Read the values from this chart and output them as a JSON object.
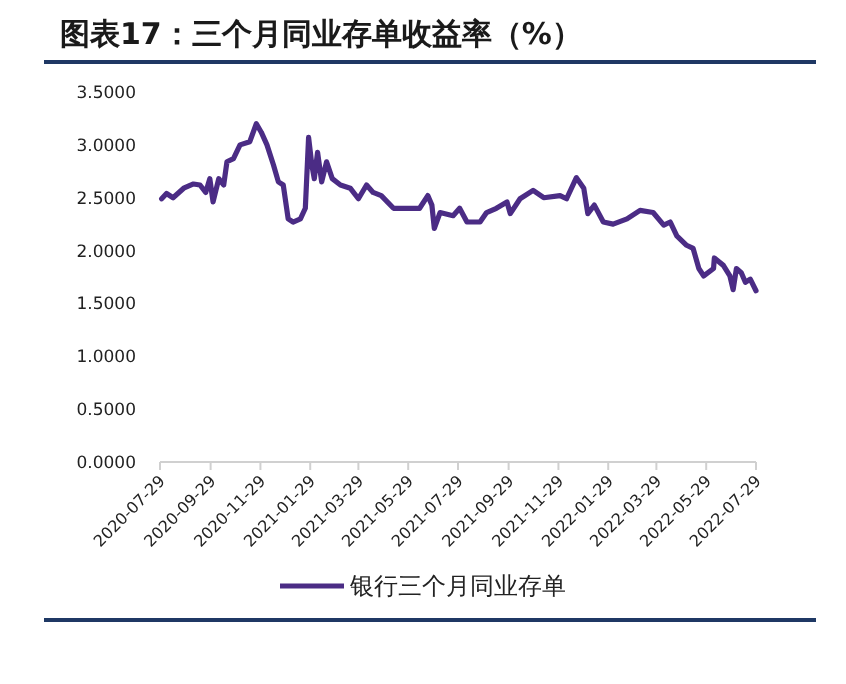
{
  "chart_data": {
    "type": "line",
    "title": "图表17：三个月同业存单收益率（%）",
    "xlim": [
      "2020-07-29",
      "2022-07-29"
    ],
    "xticks": [
      "2020-07-29",
      "2020-09-29",
      "2020-11-29",
      "2021-01-29",
      "2021-03-29",
      "2021-05-29",
      "2021-07-29",
      "2021-09-29",
      "2021-11-29",
      "2022-01-29",
      "2022-03-29",
      "2022-05-29",
      "2022-07-29"
    ],
    "ylim": [
      0,
      3.5
    ],
    "yticks": [
      {
        "value": 0,
        "label": "0.0000"
      },
      {
        "value": 0.5,
        "label": "0.5000"
      },
      {
        "value": 1,
        "label": "1.0000"
      },
      {
        "value": 1.5,
        "label": "1.5000"
      },
      {
        "value": 2,
        "label": "2.0000"
      },
      {
        "value": 2.5,
        "label": "2.5000"
      },
      {
        "value": 3,
        "label": "3.0000"
      },
      {
        "value": 3.5,
        "label": "3.5000"
      }
    ],
    "grid": false,
    "legend": "bottom",
    "marker": "none",
    "line_style": "solid",
    "series": [
      {
        "name": "银行三个月同业存单",
        "color": "#4b2c85",
        "x": [
          "2020-07-31",
          "2020-08-06",
          "2020-08-14",
          "2020-08-27",
          "2020-09-08",
          "2020-09-16",
          "2020-09-23",
          "2020-09-28",
          "2020-10-02",
          "2020-10-09",
          "2020-10-15",
          "2020-10-19",
          "2020-10-27",
          "2020-11-04",
          "2020-11-16",
          "2020-11-24",
          "2020-11-30",
          "2020-12-07",
          "2020-12-15",
          "2020-12-21",
          "2020-12-27",
          "2021-01-02",
          "2021-01-08",
          "2021-01-17",
          "2021-01-23",
          "2021-01-27",
          "2021-01-31",
          "2021-02-03",
          "2021-02-07",
          "2021-02-12",
          "2021-02-18",
          "2021-02-25",
          "2021-03-07",
          "2021-03-19",
          "2021-03-29",
          "2021-04-08",
          "2021-04-16",
          "2021-04-26",
          "2021-05-11",
          "2021-05-27",
          "2021-06-12",
          "2021-06-22",
          "2021-06-27",
          "2021-06-30",
          "2021-07-07",
          "2021-07-23",
          "2021-07-31",
          "2021-08-09",
          "2021-08-25",
          "2021-09-02",
          "2021-09-14",
          "2021-09-27",
          "2021-10-01",
          "2021-10-13",
          "2021-10-29",
          "2021-11-11",
          "2021-12-01",
          "2021-12-09",
          "2021-12-21",
          "2021-12-30",
          "2022-01-04",
          "2022-01-12",
          "2022-01-23",
          "2022-02-04",
          "2022-02-21",
          "2022-03-09",
          "2022-03-25",
          "2022-04-07",
          "2022-04-15",
          "2022-04-23",
          "2022-05-05",
          "2022-05-13",
          "2022-05-20",
          "2022-05-26",
          "2022-06-07",
          "2022-06-08",
          "2022-06-19",
          "2022-06-27",
          "2022-07-01",
          "2022-07-05",
          "2022-07-11",
          "2022-07-16",
          "2022-07-22",
          "2022-07-29"
        ],
        "values": [
          2.49,
          2.54,
          2.5,
          2.59,
          2.63,
          2.62,
          2.55,
          2.68,
          2.46,
          2.68,
          2.62,
          2.84,
          2.87,
          3.0,
          3.03,
          3.2,
          3.12,
          3.0,
          2.81,
          2.65,
          2.62,
          2.3,
          2.27,
          2.3,
          2.4,
          3.07,
          2.81,
          2.68,
          2.93,
          2.65,
          2.84,
          2.68,
          2.62,
          2.59,
          2.49,
          2.62,
          2.55,
          2.52,
          2.4,
          2.4,
          2.4,
          2.52,
          2.43,
          2.21,
          2.36,
          2.33,
          2.4,
          2.27,
          2.27,
          2.36,
          2.4,
          2.46,
          2.35,
          2.49,
          2.57,
          2.5,
          2.52,
          2.49,
          2.69,
          2.59,
          2.35,
          2.43,
          2.27,
          2.25,
          2.3,
          2.38,
          2.36,
          2.24,
          2.27,
          2.14,
          2.05,
          2.02,
          1.83,
          1.76,
          1.83,
          1.93,
          1.86,
          1.76,
          1.63,
          1.83,
          1.79,
          1.7,
          1.73,
          1.62
        ]
      }
    ]
  }
}
